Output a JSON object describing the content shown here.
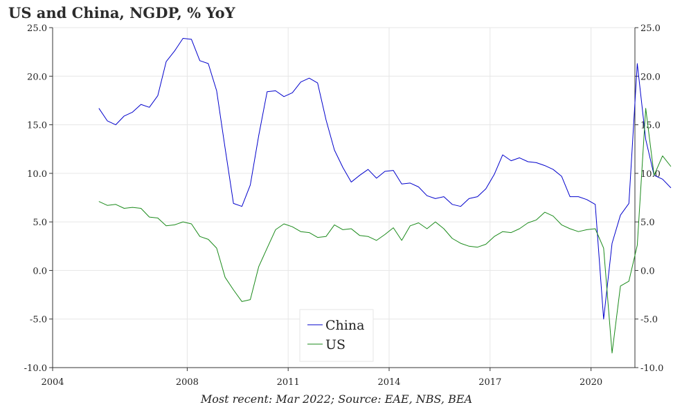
{
  "chart_data": {
    "type": "line",
    "title": "US and China, NGDP, % YoY",
    "caption": "Most recent: Mar 2022; Source: EAE, NBS, BEA",
    "xlabel": "",
    "ylabel": "",
    "ylim": [
      -10,
      25
    ],
    "y_ticks": [
      "25.0",
      "20.0",
      "15.0",
      "10.0",
      "5.0",
      "0.0",
      "-5.0",
      "-10.0"
    ],
    "x_ticks": [
      "2004",
      "2008",
      "2011",
      "2014",
      "2017",
      "2020"
    ],
    "grid": true,
    "legend_position": "bottom-center",
    "x_start": "2005 Q1",
    "x_step": "quarter",
    "series": [
      {
        "name": "China",
        "color": "#0000cc",
        "values": [
          16.7,
          15.4,
          15.0,
          15.9,
          16.3,
          17.1,
          16.8,
          18.0,
          21.5,
          22.6,
          23.9,
          23.8,
          21.6,
          21.3,
          18.5,
          12.6,
          6.9,
          6.6,
          8.8,
          13.9,
          18.4,
          18.5,
          17.9,
          18.3,
          19.4,
          19.8,
          19.3,
          15.5,
          12.4,
          10.6,
          9.1,
          9.8,
          10.4,
          9.5,
          10.2,
          10.3,
          8.9,
          9.0,
          8.6,
          7.7,
          7.4,
          7.6,
          6.8,
          6.6,
          7.4,
          7.6,
          8.4,
          9.9,
          11.9,
          11.3,
          11.6,
          11.2,
          11.1,
          10.8,
          10.4,
          9.7,
          7.6,
          7.6,
          7.3,
          6.8,
          -5.0,
          2.8,
          5.7,
          6.9,
          21.3,
          13.5,
          9.8,
          9.4,
          8.5
        ]
      },
      {
        "name": "US",
        "color": "#1a8a1a",
        "values": [
          7.1,
          6.7,
          6.8,
          6.4,
          6.5,
          6.4,
          5.5,
          5.4,
          4.6,
          4.7,
          5.0,
          4.8,
          3.5,
          3.2,
          2.3,
          -0.7,
          -2.0,
          -3.2,
          -3.0,
          0.4,
          2.3,
          4.2,
          4.8,
          4.5,
          4.0,
          3.9,
          3.4,
          3.5,
          4.7,
          4.2,
          4.3,
          3.6,
          3.5,
          3.1,
          3.7,
          4.4,
          3.1,
          4.6,
          4.9,
          4.3,
          5.0,
          4.3,
          3.3,
          2.8,
          2.5,
          2.4,
          2.7,
          3.5,
          4.0,
          3.9,
          4.3,
          4.9,
          5.2,
          6.0,
          5.6,
          4.7,
          4.3,
          4.0,
          4.2,
          4.3,
          2.3,
          -8.5,
          -1.6,
          -1.1,
          2.6,
          16.7,
          9.8,
          11.8,
          10.7
        ]
      }
    ]
  }
}
